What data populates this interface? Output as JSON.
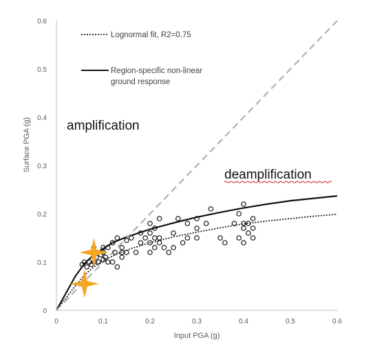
{
  "chart_data": {
    "type": "scatter",
    "xlabel": "Input PGA (g)",
    "ylabel": "Surface PGA (g)",
    "xlim": [
      0,
      0.6
    ],
    "ylim": [
      0,
      0.6
    ],
    "x_ticks": [
      "0",
      "0.1",
      "0.2",
      "0.3",
      "0.4",
      "0.5",
      "0.6"
    ],
    "y_ticks": [
      "0",
      "0.1",
      "0.2",
      "0.3",
      "0.4",
      "0.5",
      "0.6"
    ],
    "grid": false,
    "legend_position": "top-left",
    "legend": [
      {
        "label": "Lognormal fit, R2=0.75",
        "style": "dotted"
      },
      {
        "label_lines": [
          "Region-specific non-linear",
          "ground response"
        ],
        "style": "solid"
      }
    ],
    "annotations": [
      "amplification",
      "deamplification"
    ],
    "series": [
      {
        "name": "Lognormal fit, R2=0.75",
        "kind": "line",
        "style": "dotted",
        "x": [
          0,
          0.02,
          0.04,
          0.06,
          0.08,
          0.1,
          0.13,
          0.16,
          0.2,
          0.25,
          0.3,
          0.35,
          0.4,
          0.45,
          0.5,
          0.55,
          0.6
        ],
        "y": [
          0,
          0.025,
          0.05,
          0.073,
          0.09,
          0.103,
          0.117,
          0.128,
          0.14,
          0.152,
          0.162,
          0.171,
          0.179,
          0.185,
          0.19,
          0.195,
          0.199
        ]
      },
      {
        "name": "Region-specific non-linear ground response",
        "kind": "line",
        "style": "solid",
        "x": [
          0,
          0.02,
          0.04,
          0.06,
          0.08,
          0.1,
          0.12,
          0.15,
          0.2,
          0.25,
          0.3,
          0.35,
          0.4,
          0.45,
          0.5,
          0.55,
          0.6
        ],
        "y": [
          0,
          0.035,
          0.07,
          0.097,
          0.115,
          0.128,
          0.14,
          0.152,
          0.168,
          0.181,
          0.193,
          0.203,
          0.212,
          0.22,
          0.227,
          0.232,
          0.237
        ]
      },
      {
        "name": "1:1 line",
        "kind": "line",
        "style": "dashed",
        "x": [
          0,
          0.6
        ],
        "y": [
          0,
          0.6
        ]
      },
      {
        "name": "observations",
        "kind": "points",
        "x": [
          0.055,
          0.06,
          0.065,
          0.07,
          0.075,
          0.08,
          0.085,
          0.09,
          0.095,
          0.1,
          0.1,
          0.105,
          0.11,
          0.11,
          0.12,
          0.12,
          0.125,
          0.13,
          0.13,
          0.14,
          0.14,
          0.15,
          0.15,
          0.16,
          0.17,
          0.18,
          0.18,
          0.19,
          0.2,
          0.2,
          0.2,
          0.21,
          0.21,
          0.22,
          0.22,
          0.23,
          0.24,
          0.25,
          0.25,
          0.26,
          0.27,
          0.28,
          0.3,
          0.3,
          0.3,
          0.32,
          0.33,
          0.35,
          0.36,
          0.38,
          0.39,
          0.4,
          0.4,
          0.4,
          0.41,
          0.42,
          0.42,
          0.4,
          0.39,
          0.41,
          0.42,
          0.1,
          0.08,
          0.12,
          0.14,
          0.22,
          0.2,
          0.21,
          0.28
        ],
        "y": [
          0.095,
          0.1,
          0.09,
          0.1,
          0.095,
          0.1,
          0.11,
          0.1,
          0.115,
          0.105,
          0.12,
          0.11,
          0.13,
          0.1,
          0.14,
          0.1,
          0.12,
          0.15,
          0.09,
          0.13,
          0.11,
          0.145,
          0.12,
          0.15,
          0.12,
          0.14,
          0.16,
          0.15,
          0.18,
          0.12,
          0.14,
          0.15,
          0.17,
          0.14,
          0.19,
          0.13,
          0.12,
          0.16,
          0.13,
          0.19,
          0.14,
          0.15,
          0.17,
          0.19,
          0.15,
          0.18,
          0.21,
          0.15,
          0.14,
          0.18,
          0.2,
          0.17,
          0.14,
          0.22,
          0.16,
          0.17,
          0.15,
          0.18,
          0.15,
          0.18,
          0.19,
          0.13,
          0.13,
          0.14,
          0.12,
          0.15,
          0.16,
          0.13,
          0.18
        ]
      }
    ],
    "markers": [
      {
        "name": "star",
        "x": 0.08,
        "y": 0.12,
        "color": "#f5a623"
      },
      {
        "name": "star",
        "x": 0.06,
        "y": 0.055,
        "color": "#f5a623"
      }
    ]
  }
}
